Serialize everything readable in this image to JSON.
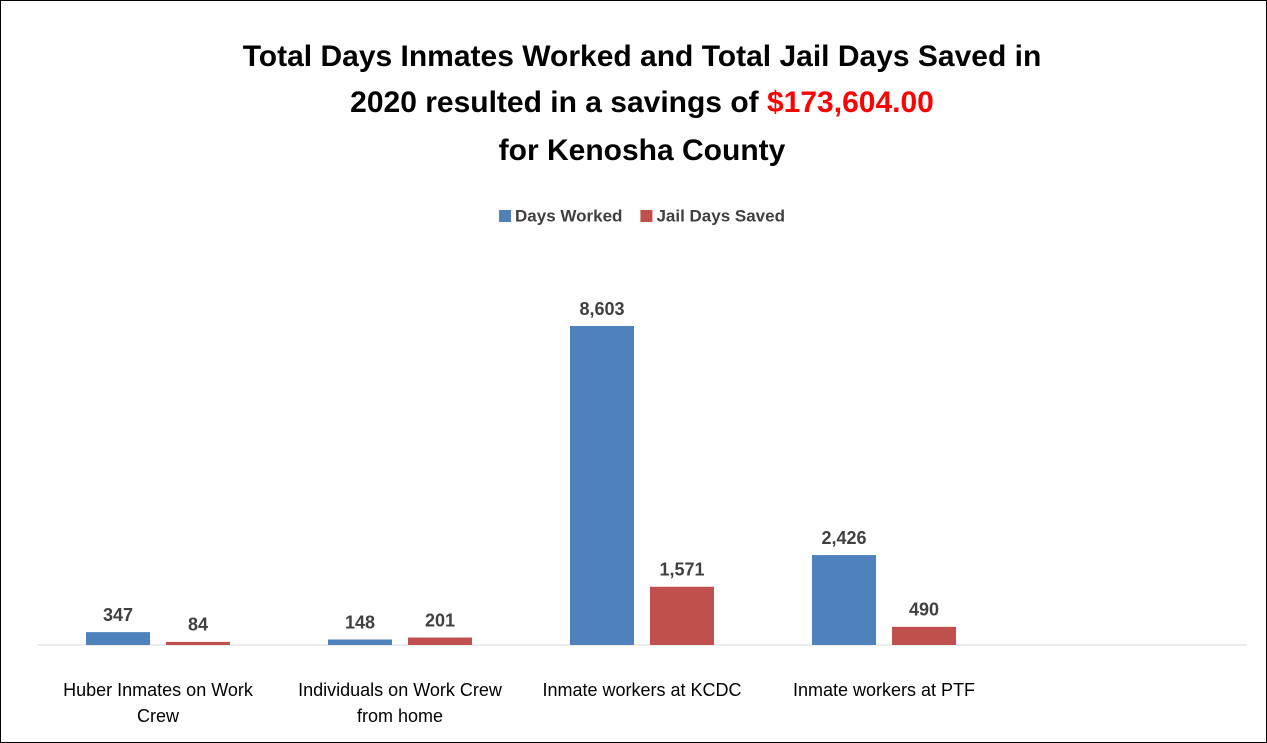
{
  "chart_data": {
    "type": "bar",
    "title": {
      "line1": "Total Days Inmates Worked and Total Jail Days Saved in",
      "line2": "2020 resulted in a savings of",
      "highlight": "$173,604.00",
      "line3": "for Kenosha County"
    },
    "categories": [
      "Huber Inmates on Work Crew",
      "Individuals on Work Crew from home",
      "Inmate workers at KCDC",
      "Inmate workers at PTF",
      null
    ],
    "series": [
      {
        "name": "Days Worked",
        "color": "#4f81bd",
        "values": [
          347,
          148,
          8603,
          2426,
          null
        ],
        "value_labels": [
          "347",
          "148",
          "8,603",
          "2,426",
          null
        ]
      },
      {
        "name": "Jail Days Saved",
        "color": "#c0504d",
        "values": [
          84,
          201,
          1571,
          490,
          null
        ],
        "value_labels": [
          "84",
          "201",
          "1,571",
          "490",
          null
        ]
      }
    ],
    "legend": "top",
    "highlight_color": "#ff0000"
  }
}
